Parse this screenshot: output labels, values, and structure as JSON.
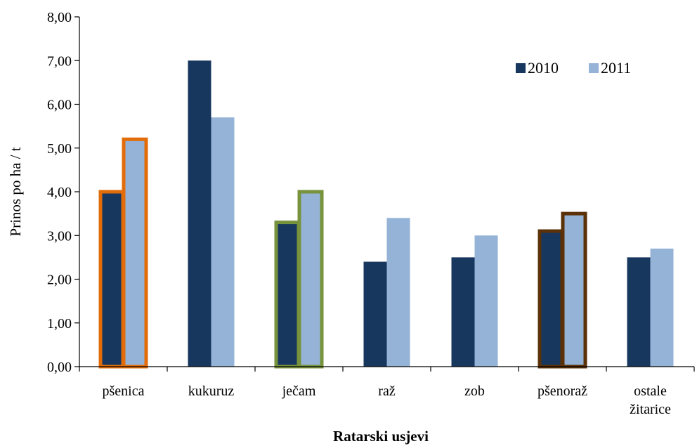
{
  "chart_data": {
    "type": "bar",
    "title": "",
    "xlabel": "Ratarski usjevi",
    "ylabel": "Prinos po ha / t",
    "categories": [
      [
        "pšenica"
      ],
      [
        "kukuruz"
      ],
      [
        "ječam"
      ],
      [
        "raž"
      ],
      [
        "zob"
      ],
      [
        "pšenoraž"
      ],
      [
        "ostale",
        "žitarice"
      ]
    ],
    "series": [
      {
        "name": "2010",
        "color": "#17375e",
        "values": [
          4.0,
          7.0,
          3.3,
          2.4,
          2.5,
          3.1,
          2.5
        ]
      },
      {
        "name": "2011",
        "color": "#95b3d7",
        "values": [
          5.2,
          5.7,
          4.0,
          3.4,
          3.0,
          3.5,
          2.7
        ]
      }
    ],
    "ylim": [
      0,
      8
    ],
    "yticks": [
      "0,00",
      "1,00",
      "2,00",
      "3,00",
      "4,00",
      "5,00",
      "6,00",
      "7,00",
      "8,00"
    ],
    "grid": false,
    "legend": "top-right",
    "highlights": [
      {
        "category": "pšenica",
        "color": "#e36c0a"
      },
      {
        "category": "ječam",
        "color": "#77933c"
      },
      {
        "category": "pšenoraž",
        "color": "#5a3108"
      }
    ]
  }
}
